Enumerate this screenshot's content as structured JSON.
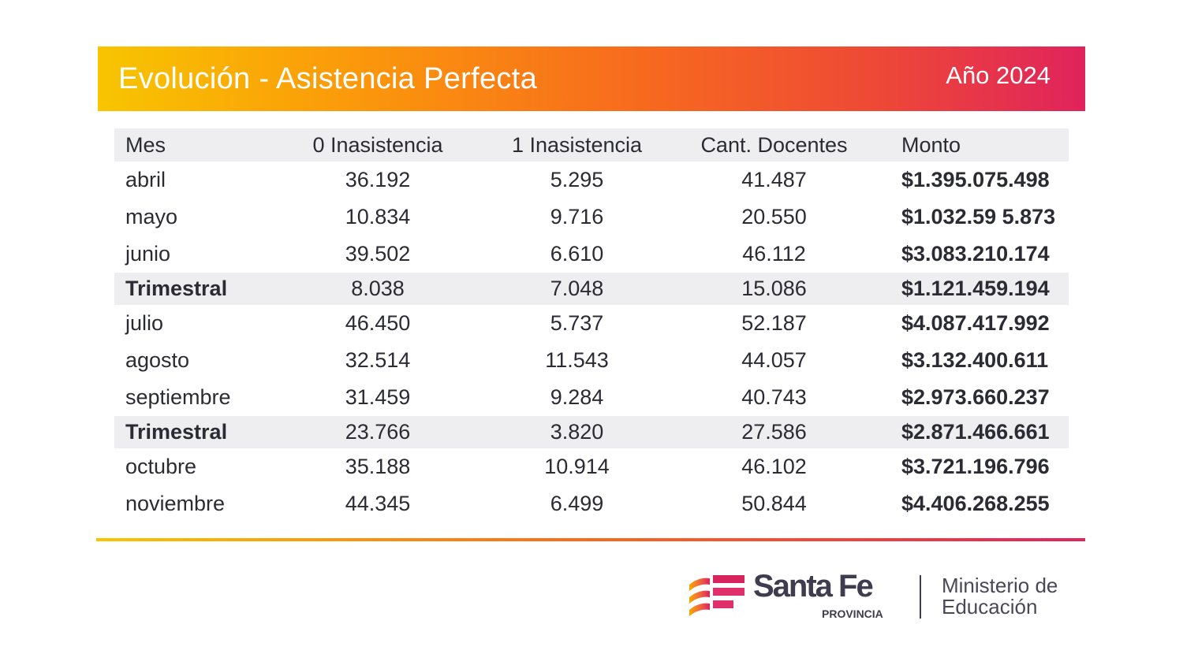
{
  "header": {
    "title": "Evolución - Asistencia Perfecta",
    "year": "Año 2024"
  },
  "table": {
    "columns": [
      "Mes",
      "0 Inasistencia",
      "1 Inasistencia",
      "Cant. Docentes",
      "Monto"
    ],
    "rows": [
      {
        "mes": "abril",
        "cero": "36.192",
        "uno": "5.295",
        "cant": "41.487",
        "monto": "$1.395.075.498",
        "subtotal": false
      },
      {
        "mes": "mayo",
        "cero": "10.834",
        "uno": "9.716",
        "cant": "20.550",
        "monto": "$1.032.59 5.873",
        "subtotal": false
      },
      {
        "mes": "junio",
        "cero": "39.502",
        "uno": "6.610",
        "cant": "46.112",
        "monto": "$3.083.210.174",
        "subtotal": false
      },
      {
        "mes": "Trimestral",
        "cero": "8.038",
        "uno": "7.048",
        "cant": "15.086",
        "monto": "$1.121.459.194",
        "subtotal": true
      },
      {
        "mes": "julio",
        "cero": "46.450",
        "uno": "5.737",
        "cant": "52.187",
        "monto": "$4.087.417.992",
        "subtotal": false
      },
      {
        "mes": "agosto",
        "cero": "32.514",
        "uno": "11.543",
        "cant": "44.057",
        "monto": "$3.132.400.611",
        "subtotal": false
      },
      {
        "mes": "septiembre",
        "cero": "31.459",
        "uno": "9.284",
        "cant": "40.743",
        "monto": "$2.973.660.237",
        "subtotal": false
      },
      {
        "mes": "Trimestral",
        "cero": "23.766",
        "uno": "3.820",
        "cant": "27.586",
        "monto": "$2.871.466.661",
        "subtotal": true
      },
      {
        "mes": "octubre",
        "cero": "35.188",
        "uno": "10.914",
        "cant": "46.102",
        "monto": "$3.721.196.796",
        "subtotal": false
      },
      {
        "mes": "noviembre",
        "cero": "44.345",
        "uno": "6.499",
        "cant": "50.844",
        "monto": "$4.406.268.255",
        "subtotal": false
      }
    ]
  },
  "footer": {
    "brand": "Santa Fe",
    "brand_sub": "PROVINCIA",
    "ministry_line1": "Ministerio de",
    "ministry_line2": "Educación"
  },
  "colors": {
    "gradient_start": "#f8c500",
    "gradient_mid": "#f76a1e",
    "gradient_end": "#e0235c",
    "subtotal_bg": "#eeeef0"
  }
}
